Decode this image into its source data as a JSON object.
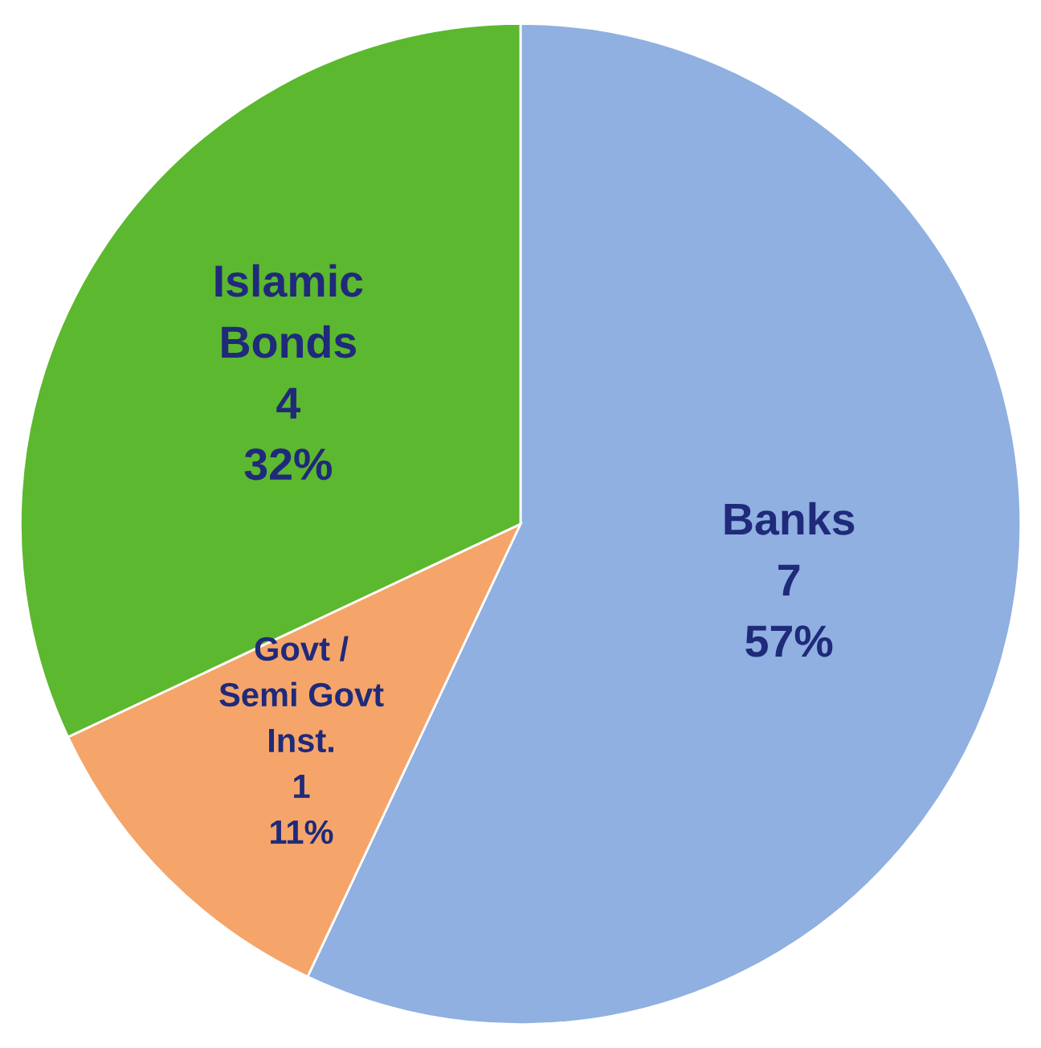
{
  "chart_data": {
    "type": "pie",
    "categories": [
      "Banks",
      "Govt /\nSemi Govt\nInst.",
      "Islamic\nBonds"
    ],
    "values": [
      57,
      11,
      32
    ],
    "value_labels": [
      "7\n57%",
      "1\n11%",
      "4\n32%"
    ],
    "colors": [
      "#8fb0e0",
      "#f5a56a",
      "#5cb82e"
    ]
  }
}
